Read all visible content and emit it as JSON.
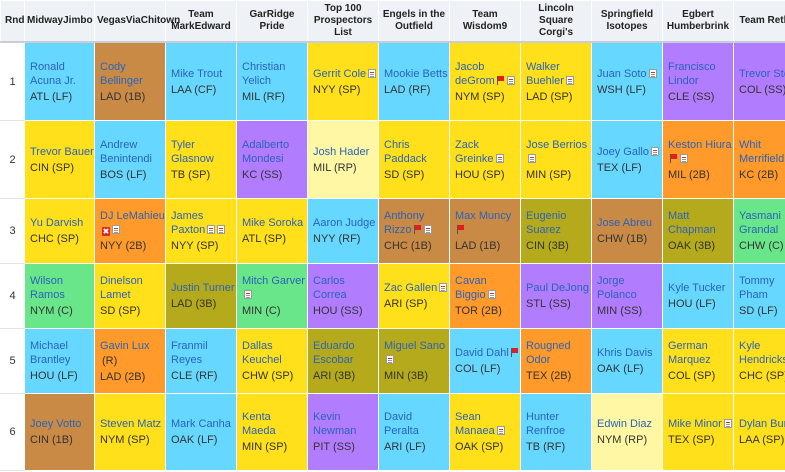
{
  "header": {
    "rnd": "Rnd",
    "teams": [
      "MidwayJimbo",
      "VegasViaChitown",
      "Team MarkEdward",
      "GarRidge Pride",
      "Top 100 Prospectors List",
      "Engels in the Outfield",
      "Team Wisdom9",
      "Lincoln Square Corgi's",
      "Springfield Isotopes",
      "Egbert Humberbrink",
      "Team Retlon"
    ]
  },
  "colors": {
    "C": "#6ae68a",
    "1B": "#c98a46",
    "2B": "#ff9a2b",
    "3B": "#b5aa1c",
    "SS": "#b27cff",
    "LF": "#66d8ff",
    "CF": "#66d8ff",
    "RF": "#66d8ff",
    "SP": "#ffe01a",
    "RP": "#fff7a3"
  },
  "rounds": [
    {
      "num": "1",
      "picks": [
        {
          "name": "Ronald Acuna Jr.",
          "pos": "ATL (LF)",
          "color": "LF"
        },
        {
          "name": "Cody Bellinger",
          "pos": "LAD (1B)",
          "color": "1B"
        },
        {
          "name": "Mike Trout",
          "pos": "LAA (CF)",
          "color": "CF"
        },
        {
          "name": "Christian Yelich",
          "pos": "MIL (RF)",
          "color": "RF"
        },
        {
          "name": "Gerrit Cole",
          "pos": "NYY (SP)",
          "color": "SP",
          "icons": [
            "note"
          ]
        },
        {
          "name": "Mookie Betts",
          "pos": "LAD (RF)",
          "color": "RF"
        },
        {
          "name": "Jacob deGrom",
          "pos": "NYM (SP)",
          "color": "SP",
          "icons": [
            "flag",
            "note"
          ]
        },
        {
          "name": "Walker Buehler",
          "pos": "LAD (SP)",
          "color": "SP",
          "icons": [
            "note"
          ]
        },
        {
          "name": "Juan Soto",
          "pos": "WSH (LF)",
          "color": "LF",
          "icons": [
            "note"
          ]
        },
        {
          "name": "Francisco Lindor",
          "pos": "CLE (SS)",
          "color": "SS"
        },
        {
          "name": "Trevor Story",
          "pos": "COL (SS)",
          "color": "SS"
        }
      ]
    },
    {
      "num": "2",
      "picks": [
        {
          "name": "Trevor Bauer",
          "pos": "CIN (SP)",
          "color": "SP"
        },
        {
          "name": "Andrew Benintendi",
          "pos": "BOS (LF)",
          "color": "LF"
        },
        {
          "name": "Tyler Glasnow",
          "pos": "TB (SP)",
          "color": "SP"
        },
        {
          "name": "Adalberto Mondesi",
          "pos": "KC (SS)",
          "color": "SS"
        },
        {
          "name": "Josh Hader",
          "pos": "MIL (RP)",
          "color": "RP"
        },
        {
          "name": "Chris Paddack",
          "pos": "SD (SP)",
          "color": "SP"
        },
        {
          "name": "Zack Greinke",
          "pos": "HOU (SP)",
          "color": "SP",
          "icons": [
            "note"
          ]
        },
        {
          "name": "Jose Berrios",
          "pos": "MIN (SP)",
          "color": "SP",
          "icons": [
            "note"
          ]
        },
        {
          "name": "Joey Gallo",
          "pos": "TEX (LF)",
          "color": "LF",
          "icons": [
            "note"
          ]
        },
        {
          "name": "Keston Hiura",
          "pos": "MIL (2B)",
          "color": "2B",
          "icons": [
            "flag",
            "note"
          ]
        },
        {
          "name": "Whit Merrifield",
          "pos": "KC (2B)",
          "color": "2B"
        }
      ]
    },
    {
      "num": "3",
      "picks": [
        {
          "name": "Yu Darvish",
          "pos": "CHC (SP)",
          "color": "SP"
        },
        {
          "name": "DJ LeMahieu",
          "pos": "NYY (2B)",
          "color": "2B",
          "icons": [
            "bolt",
            "note"
          ]
        },
        {
          "name": "James Paxton",
          "pos": "NYY (SP)",
          "color": "SP",
          "icons": [
            "note",
            "note"
          ]
        },
        {
          "name": "Mike Soroka",
          "pos": "ATL (SP)",
          "color": "SP"
        },
        {
          "name": "Aaron Judge",
          "pos": "NYY (RF)",
          "color": "RF"
        },
        {
          "name": "Anthony Rizzo",
          "pos": "CHC (1B)",
          "color": "1B",
          "icons": [
            "flag",
            "note"
          ]
        },
        {
          "name": "Max Muncy",
          "pos": "LAD (1B)",
          "color": "1B",
          "icons": [
            "flag"
          ]
        },
        {
          "name": "Eugenio Suarez",
          "pos": "CIN (3B)",
          "color": "3B"
        },
        {
          "name": "Jose Abreu",
          "pos": "CHW (1B)",
          "color": "1B"
        },
        {
          "name": "Matt Chapman",
          "pos": "OAK (3B)",
          "color": "3B"
        },
        {
          "name": "Yasmani Grandal",
          "pos": "CHW (C)",
          "color": "C"
        }
      ]
    },
    {
      "num": "4",
      "picks": [
        {
          "name": "Wilson Ramos",
          "pos": "NYM (C)",
          "color": "C"
        },
        {
          "name": "Dinelson Lamet",
          "pos": "SD (SP)",
          "color": "SP"
        },
        {
          "name": "Justin Turner",
          "pos": "LAD (3B)",
          "color": "3B"
        },
        {
          "name": "Mitch Garver",
          "pos": "MIN (C)",
          "color": "C",
          "icons": [
            "note"
          ]
        },
        {
          "name": "Carlos Correa",
          "pos": "HOU (SS)",
          "color": "SS"
        },
        {
          "name": "Zac Gallen",
          "pos": "ARI (SP)",
          "color": "SP",
          "icons": [
            "note"
          ]
        },
        {
          "name": "Cavan Biggio",
          "pos": "TOR (2B)",
          "color": "2B",
          "icons": [
            "note"
          ]
        },
        {
          "name": "Paul DeJong",
          "pos": "STL (SS)",
          "color": "SS"
        },
        {
          "name": "Jorge Polanco",
          "pos": "MIN (SS)",
          "color": "SS"
        },
        {
          "name": "Kyle Tucker",
          "pos": "HOU (LF)",
          "color": "LF"
        },
        {
          "name": "Tommy Pham",
          "pos": "SD (LF)",
          "color": "LF"
        }
      ]
    },
    {
      "num": "5",
      "picks": [
        {
          "name": "Michael Brantley",
          "pos": "HOU (LF)",
          "color": "LF"
        },
        {
          "name": "Gavin Lux",
          "pos": "LAD (2B)",
          "color": "2B",
          "icons": [
            "R"
          ]
        },
        {
          "name": "Franmil Reyes",
          "pos": "CLE (RF)",
          "color": "RF"
        },
        {
          "name": "Dallas Keuchel",
          "pos": "CHW (SP)",
          "color": "SP"
        },
        {
          "name": "Eduardo Escobar",
          "pos": "ARI (3B)",
          "color": "3B"
        },
        {
          "name": "Miguel Sano",
          "pos": "MIN (3B)",
          "color": "3B",
          "icons": [
            "note"
          ]
        },
        {
          "name": "David Dahl",
          "pos": "COL (LF)",
          "color": "LF",
          "icons": [
            "flag"
          ]
        },
        {
          "name": "Rougned Odor",
          "pos": "TEX (2B)",
          "color": "2B"
        },
        {
          "name": "Khris Davis",
          "pos": "OAK (LF)",
          "color": "LF"
        },
        {
          "name": "German Marquez",
          "pos": "COL (SP)",
          "color": "SP"
        },
        {
          "name": "Kyle Hendricks",
          "pos": "CHC (SP)",
          "color": "SP"
        }
      ]
    },
    {
      "num": "6",
      "picks": [
        {
          "name": "Joey Votto",
          "pos": "CIN (1B)",
          "color": "1B"
        },
        {
          "name": "Steven Matz",
          "pos": "NYM (SP)",
          "color": "SP"
        },
        {
          "name": "Mark Canha",
          "pos": "OAK (LF)",
          "color": "LF"
        },
        {
          "name": "Kenta Maeda",
          "pos": "MIN (SP)",
          "color": "SP"
        },
        {
          "name": "Kevin Newman",
          "pos": "PIT (SS)",
          "color": "SS"
        },
        {
          "name": "David Peralta",
          "pos": "ARI (LF)",
          "color": "LF"
        },
        {
          "name": "Sean Manaea",
          "pos": "OAK (SP)",
          "color": "SP",
          "icons": [
            "note"
          ]
        },
        {
          "name": "Hunter Renfroe",
          "pos": "TB (RF)",
          "color": "RF"
        },
        {
          "name": "Edwin Diaz",
          "pos": "NYM (RP)",
          "color": "RP"
        },
        {
          "name": "Mike Minor",
          "pos": "TEX (SP)",
          "color": "SP",
          "icons": [
            "note"
          ]
        },
        {
          "name": "Dylan Bundy",
          "pos": "LAA (SP)",
          "color": "SP"
        }
      ]
    }
  ]
}
